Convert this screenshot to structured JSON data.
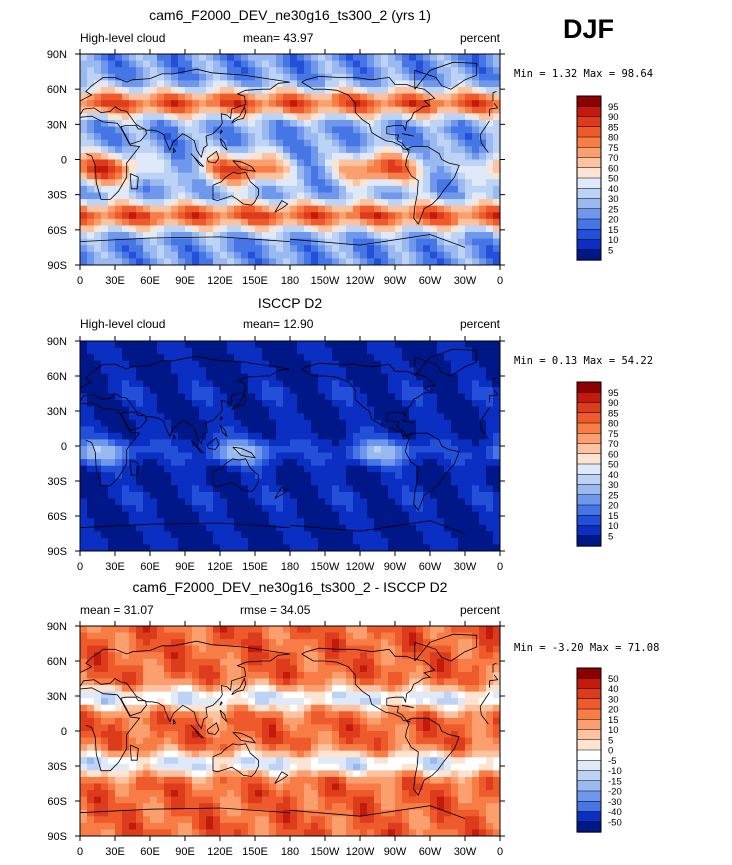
{
  "season": "DJF",
  "chart_data": [
    {
      "type": "heatmap",
      "title": "cam6_F2000_DEV_ne30g16_ts300_2 (yrs 1)",
      "left_label": "High-level cloud",
      "center_label": "mean=   43.97",
      "right_label": "percent",
      "stats": "Min =    1.32 Max =   98.64",
      "xticks": [
        "0",
        "30E",
        "60E",
        "90E",
        "120E",
        "150E",
        "180",
        "150W",
        "120W",
        "90W",
        "60W",
        "30W",
        "0"
      ],
      "yticks": [
        "90N",
        "60N",
        "30N",
        "0",
        "30S",
        "60S",
        "90S"
      ],
      "xlim": [
        0,
        360
      ],
      "ylim": [
        -90,
        90
      ],
      "colorbar": {
        "labels": [
          "95",
          "90",
          "85",
          "80",
          "75",
          "70",
          "60",
          "50",
          "40",
          "30",
          "25",
          "20",
          "15",
          "10",
          "5"
        ],
        "colors": [
          "#8b0000",
          "#c41a0e",
          "#dd3c1c",
          "#ef5a2c",
          "#f87c45",
          "#fb9f6e",
          "#fdc3a0",
          "#fde4d2",
          "#dfe9f8",
          "#bcd3f5",
          "#9ab9f1",
          "#6f98ec",
          "#4676e6",
          "#2450d9",
          "#0a2fc2",
          "#001788"
        ]
      }
    },
    {
      "type": "heatmap",
      "title": "ISCCP D2",
      "left_label": "High-level cloud",
      "center_label": "mean=   12.90",
      "right_label": "percent",
      "stats": "Min =    0.13 Max =   54.22",
      "xticks": [
        "0",
        "30E",
        "60E",
        "90E",
        "120E",
        "150E",
        "180",
        "150W",
        "120W",
        "90W",
        "60W",
        "30W",
        "0"
      ],
      "yticks": [
        "90N",
        "60N",
        "30N",
        "0",
        "30S",
        "60S",
        "90S"
      ],
      "xlim": [
        0,
        360
      ],
      "ylim": [
        -90,
        90
      ],
      "colorbar": {
        "labels": [
          "95",
          "90",
          "85",
          "80",
          "75",
          "70",
          "60",
          "50",
          "40",
          "30",
          "25",
          "20",
          "15",
          "10",
          "5"
        ],
        "colors": [
          "#8b0000",
          "#c41a0e",
          "#dd3c1c",
          "#ef5a2c",
          "#f87c45",
          "#fb9f6e",
          "#fdc3a0",
          "#fde4d2",
          "#dfe9f8",
          "#bcd3f5",
          "#9ab9f1",
          "#6f98ec",
          "#4676e6",
          "#2450d9",
          "#0a2fc2",
          "#001788"
        ]
      }
    },
    {
      "type": "heatmap",
      "title": "cam6_F2000_DEV_ne30g16_ts300_2 - ISCCP D2",
      "left_label": "mean =   31.07",
      "center_label": "rmse =   34.05",
      "right_label": "percent",
      "stats": "Min =   -3.20 Max =   71.08",
      "xticks": [
        "0",
        "30E",
        "60E",
        "90E",
        "120E",
        "150E",
        "180",
        "150W",
        "120W",
        "90W",
        "60W",
        "30W",
        "0"
      ],
      "yticks": [
        "90N",
        "60N",
        "30N",
        "0",
        "30S",
        "60S",
        "90S"
      ],
      "xlim": [
        0,
        360
      ],
      "ylim": [
        -90,
        90
      ],
      "colorbar": {
        "labels": [
          "50",
          "40",
          "30",
          "20",
          "15",
          "10",
          "5",
          "0",
          "-5",
          "-10",
          "-15",
          "-20",
          "-30",
          "-40",
          "-50"
        ],
        "colors": [
          "#8b0000",
          "#c41a0e",
          "#dd3c1c",
          "#ef5a2c",
          "#f87c45",
          "#fb9f6e",
          "#fdc3a0",
          "#fde4d2",
          "#ffffff",
          "#dfe9f8",
          "#bcd3f5",
          "#9ab9f1",
          "#6f98ec",
          "#4676e6",
          "#0a2fc2",
          "#001788"
        ]
      }
    }
  ]
}
